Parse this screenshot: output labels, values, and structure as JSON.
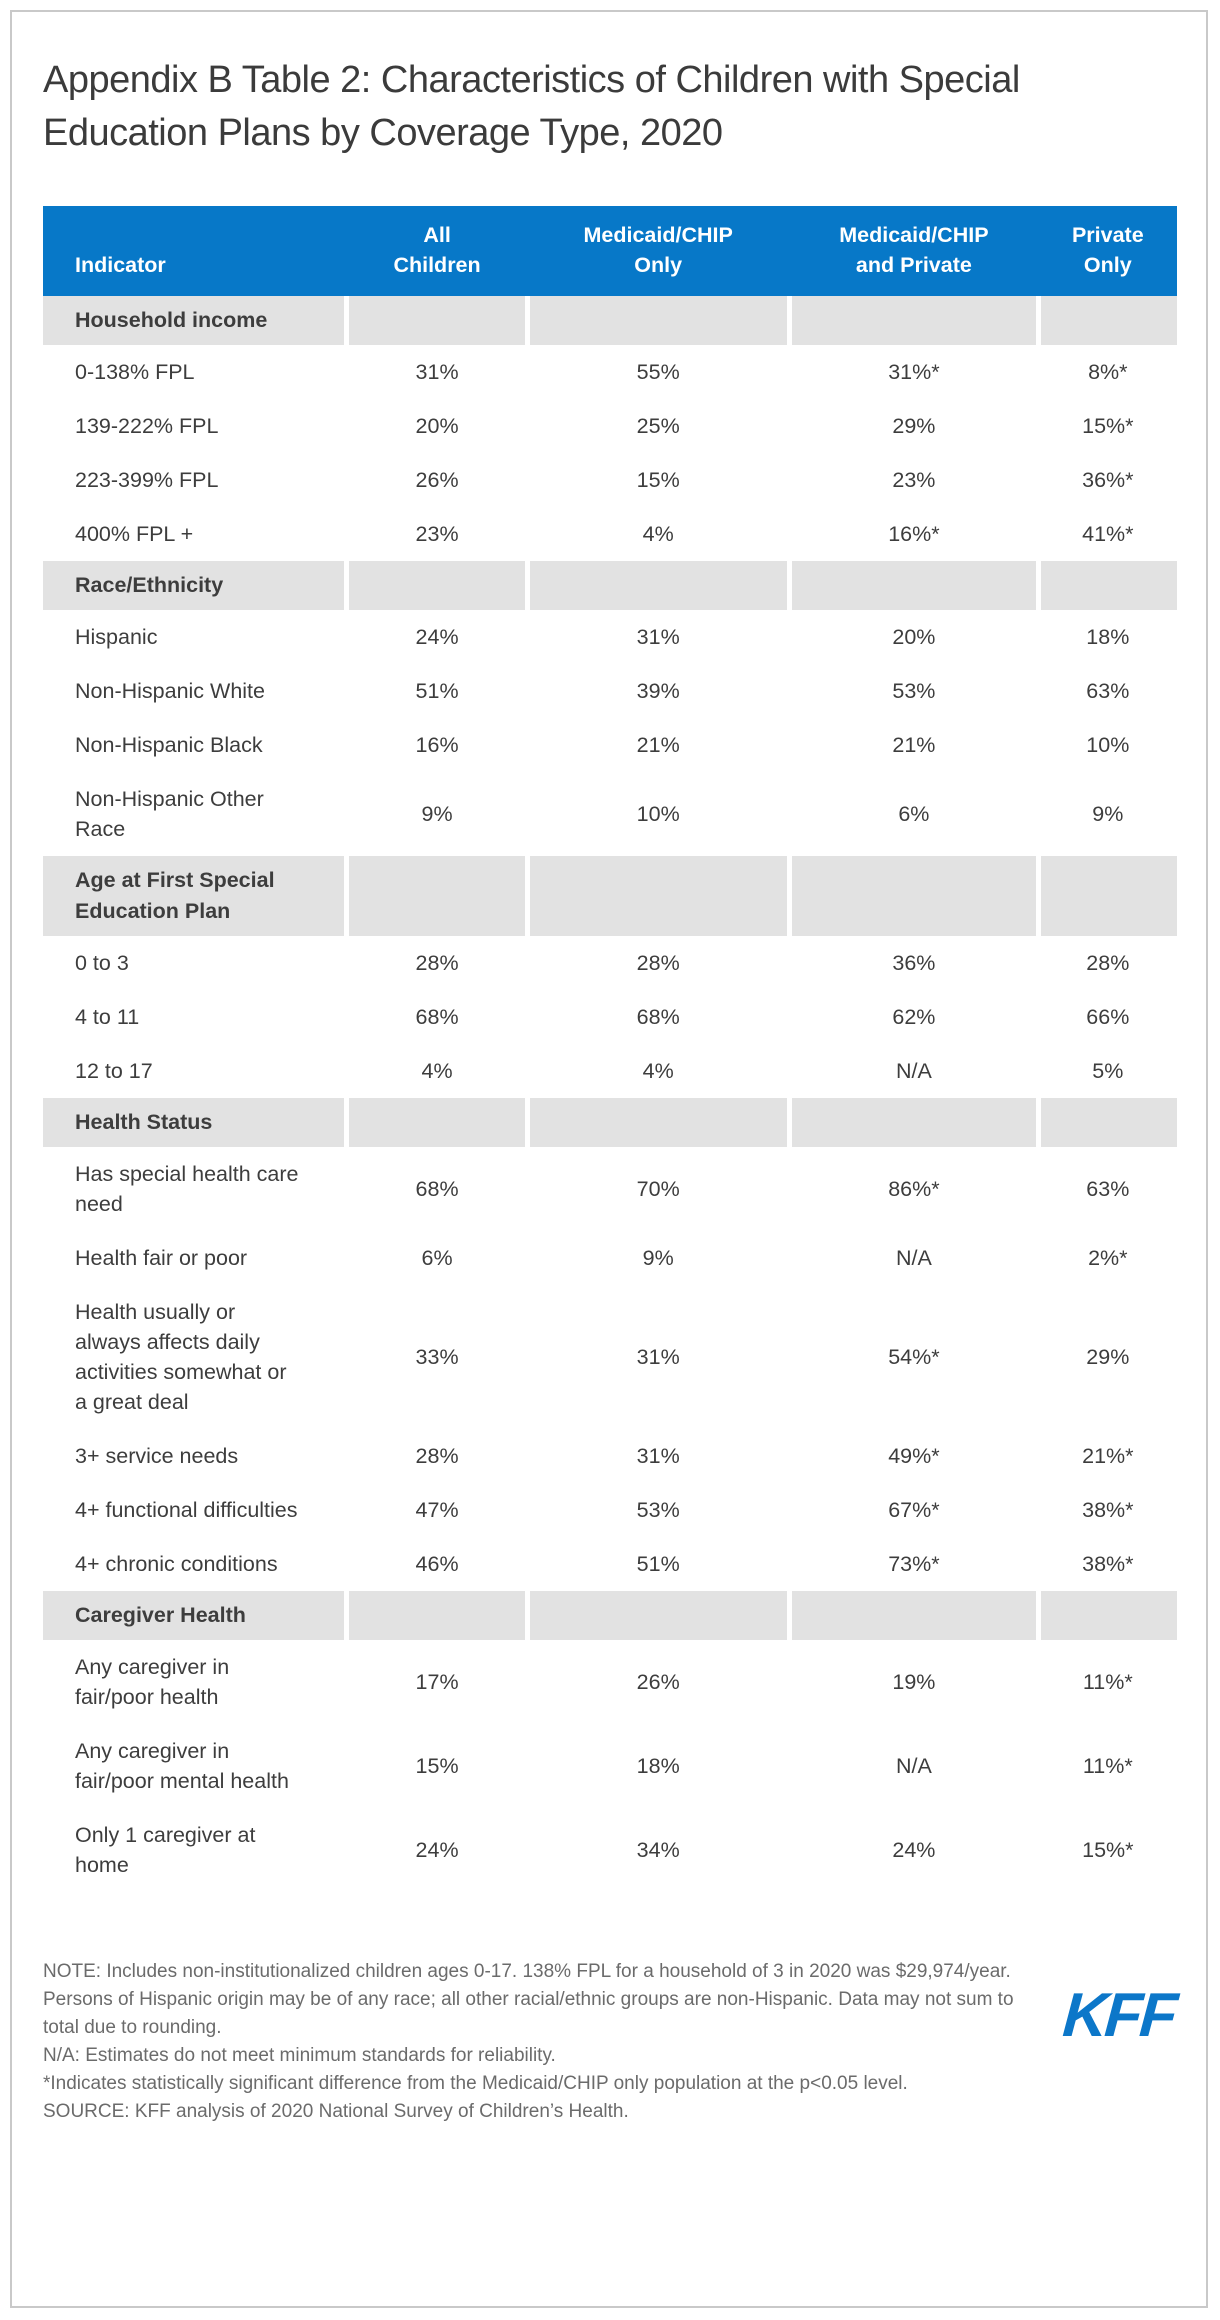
{
  "title": "Appendix B Table 2: Characteristics of Children with Special Education Plans by Coverage Type, 2020",
  "chart_data": {
    "type": "table",
    "title": "Appendix B Table 2: Characteristics of Children with Special Education Plans by Coverage Type, 2020",
    "columns": [
      "Indicator",
      "All\nChildren",
      "Medicaid/CHIP\nOnly",
      "Medicaid/CHIP\nand Private",
      "Private\nOnly"
    ],
    "sections": [
      {
        "name": "Household income",
        "rows": [
          {
            "indicator": "0-138% FPL",
            "values": [
              "31%",
              "55%",
              "31%*",
              "8%*"
            ]
          },
          {
            "indicator": "139-222% FPL",
            "values": [
              "20%",
              "25%",
              "29%",
              "15%*"
            ]
          },
          {
            "indicator": "223-399% FPL",
            "values": [
              "26%",
              "15%",
              "23%",
              "36%*"
            ]
          },
          {
            "indicator": "400% FPL +",
            "values": [
              "23%",
              "4%",
              "16%*",
              "41%*"
            ]
          }
        ]
      },
      {
        "name": "Race/Ethnicity",
        "rows": [
          {
            "indicator": "Hispanic",
            "values": [
              "24%",
              "31%",
              "20%",
              "18%"
            ]
          },
          {
            "indicator": "Non-Hispanic White",
            "values": [
              "51%",
              "39%",
              "53%",
              "63%"
            ]
          },
          {
            "indicator": "Non-Hispanic Black",
            "values": [
              "16%",
              "21%",
              "21%",
              "10%"
            ]
          },
          {
            "indicator": "Non-Hispanic Other Race",
            "values": [
              "9%",
              "10%",
              "6%",
              "9%"
            ]
          }
        ]
      },
      {
        "name": "Age at First Special Education Plan",
        "rows": [
          {
            "indicator": "0 to 3",
            "values": [
              "28%",
              "28%",
              "36%",
              "28%"
            ]
          },
          {
            "indicator": "4 to 11",
            "values": [
              "68%",
              "68%",
              "62%",
              "66%"
            ]
          },
          {
            "indicator": "12 to 17",
            "values": [
              "4%",
              "4%",
              "N/A",
              "5%"
            ]
          }
        ]
      },
      {
        "name": "Health Status",
        "rows": [
          {
            "indicator": "Has special health care need",
            "values": [
              "68%",
              "70%",
              "86%*",
              "63%"
            ]
          },
          {
            "indicator": "Health fair or poor",
            "values": [
              "6%",
              "9%",
              "N/A",
              "2%*"
            ]
          },
          {
            "indicator": "Health usually or always affects daily activities somewhat or a great deal",
            "values": [
              "33%",
              "31%",
              "54%*",
              "29%"
            ]
          },
          {
            "indicator": "3+ service needs",
            "values": [
              "28%",
              "31%",
              "49%*",
              "21%*"
            ]
          },
          {
            "indicator": "4+ functional difficulties",
            "values": [
              "47%",
              "53%",
              "67%*",
              "38%*"
            ]
          },
          {
            "indicator": "4+ chronic conditions",
            "values": [
              "46%",
              "51%",
              "73%*",
              "38%*"
            ]
          }
        ]
      },
      {
        "name": "Caregiver Health",
        "rows": [
          {
            "indicator": "Any caregiver in fair/poor health",
            "values": [
              "17%",
              "26%",
              "19%",
              "11%*"
            ]
          },
          {
            "indicator": "Any caregiver in fair/poor mental health",
            "values": [
              "15%",
              "18%",
              "N/A",
              "11%*"
            ]
          },
          {
            "indicator": "Only 1 caregiver at home",
            "values": [
              "24%",
              "34%",
              "24%",
              "15%*"
            ]
          }
        ]
      }
    ],
    "notes": [
      "NOTE: Includes non-institutionalized children ages 0-17. 138% FPL for a household of 3 in 2020 was $29,974/year. Persons of Hispanic origin may be of any race; all other racial/ethnic groups are non-Hispanic. Data may not sum to total due to rounding.",
      "N/A: Estimates do not meet minimum standards for reliability.",
      "*Indicates statistically significant difference from the Medicaid/CHIP only population at the p<0.05 level.",
      "SOURCE: KFF analysis of 2020 National Survey of Children’s Health."
    ]
  },
  "branding": {
    "logo_text": "KFF"
  },
  "colors": {
    "header_blue": "#0778C8",
    "section_gray": "#E2E2E2",
    "body_text": "#3D3D3D",
    "note_text": "#6B6B6B",
    "logo_blue": "#0C77C9",
    "card_border": "#C9C9C9"
  }
}
